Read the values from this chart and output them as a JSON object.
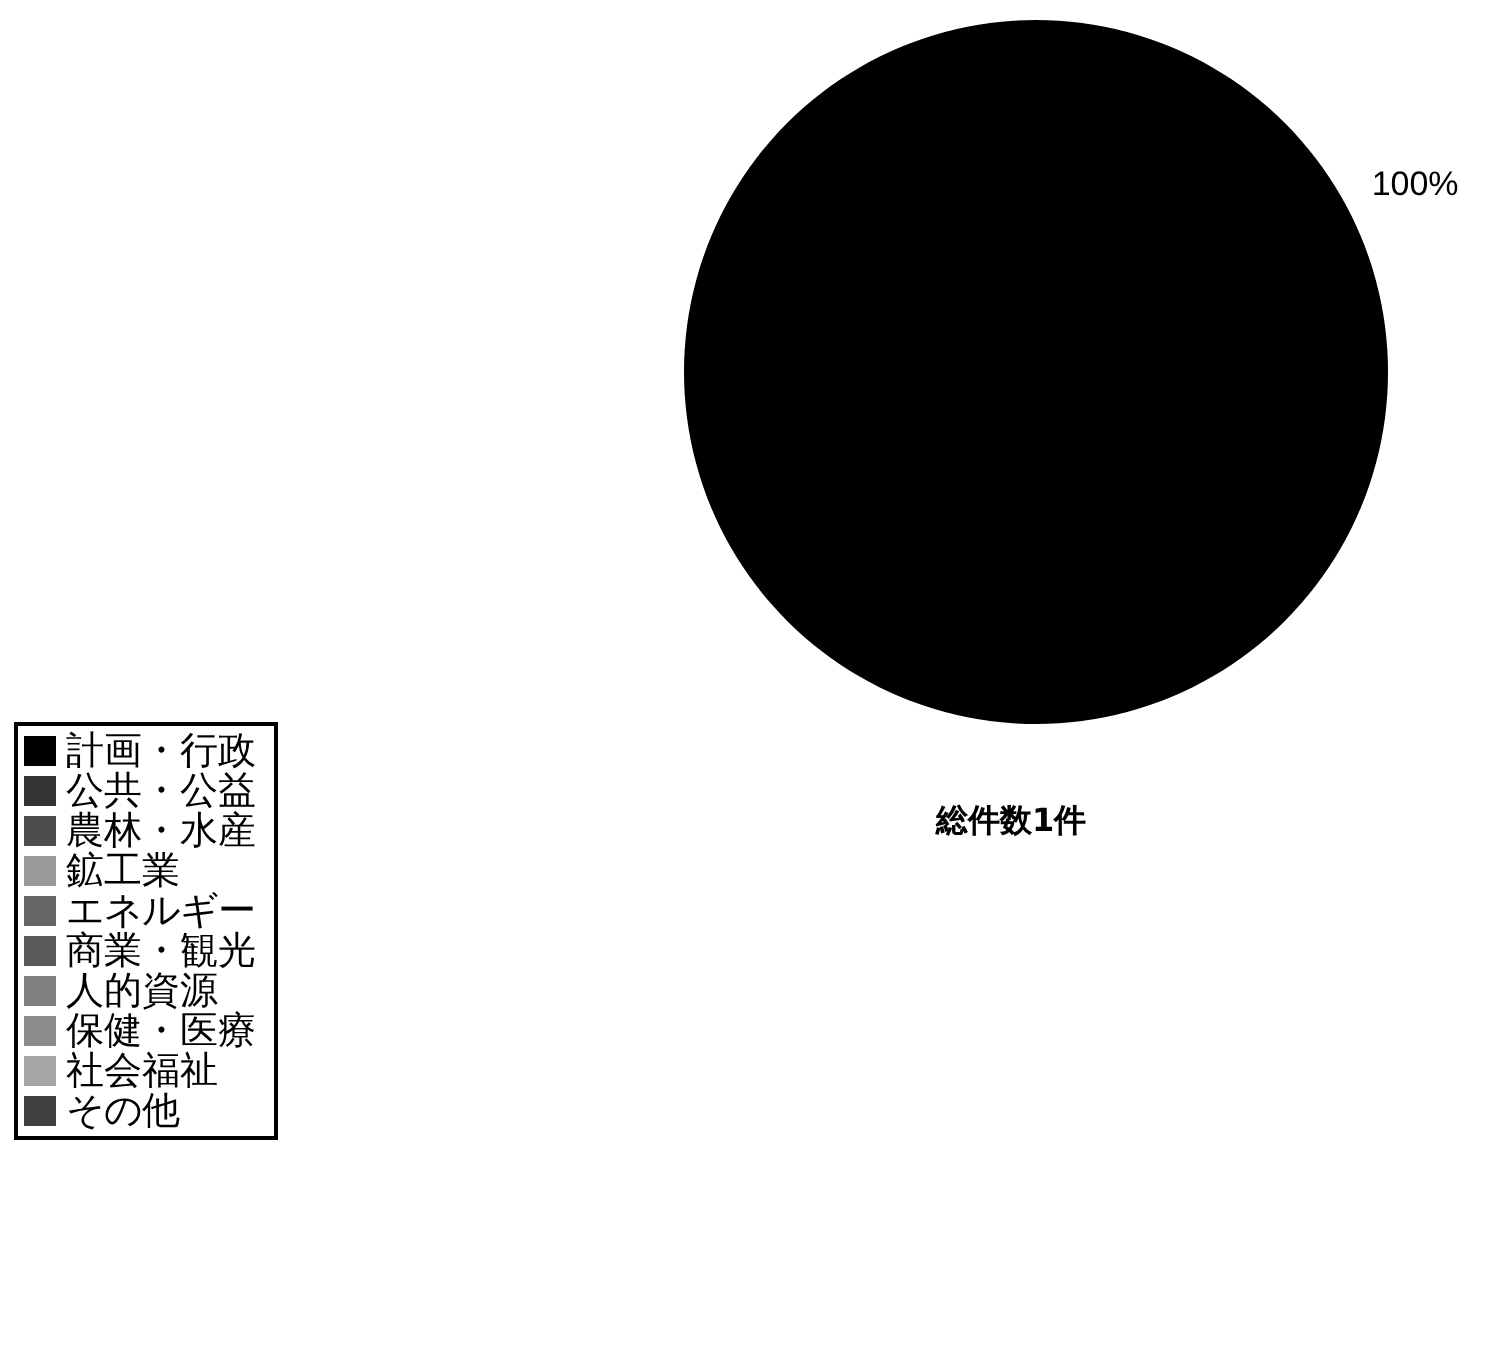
{
  "chart_data": {
    "type": "pie",
    "categories": [
      "計画・行政",
      "公共・公益",
      "農林・水産",
      "鉱工業",
      "エネルギー",
      "商業・観光",
      "人的資源",
      "保健・医療",
      "社会福祉",
      "その他"
    ],
    "values": [
      100,
      0,
      0,
      0,
      0,
      0,
      0,
      0,
      0,
      0
    ],
    "colors": [
      "#000000",
      "#333333",
      "#4d4d4d",
      "#999999",
      "#666666",
      "#595959",
      "#808080",
      "#8c8c8c",
      "#a6a6a6",
      "#404040"
    ],
    "value_labels": [
      "100%",
      null,
      null,
      null,
      null,
      null,
      null,
      null,
      null,
      null
    ],
    "annotations": [
      "総件数1件"
    ],
    "legend": "bottom left"
  }
}
